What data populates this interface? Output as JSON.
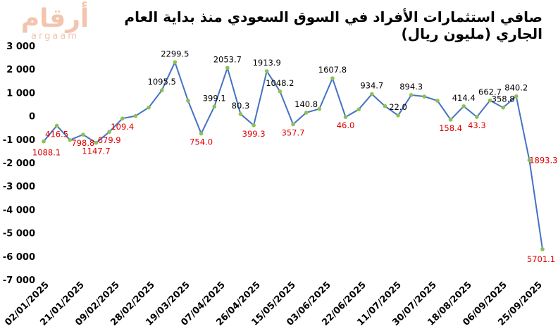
{
  "logo": {
    "text_ar": "أرقام",
    "text_en": "argaam"
  },
  "chart_data": {
    "type": "line",
    "title": "صافي استثمارات الأفراد في السوق السعودي منذ بداية العام الجاري (مليون ريال)",
    "xlabel": "",
    "ylabel": "",
    "ylim": [
      -7000,
      3000
    ],
    "y_ticks": [
      "3 000",
      "2 000",
      "1 000",
      "0",
      "-1 000",
      "-2 000",
      "-3 000",
      "-4 000",
      "-5 000",
      "-6 000",
      "-7 000"
    ],
    "x_tick_labels": [
      "02/01/2025",
      "21/01/2025",
      "09/02/2025",
      "28/02/2025",
      "19/03/2025",
      "07/04/2025",
      "26/04/2025",
      "15/05/2025",
      "03/06/2025",
      "22/06/2025",
      "11/07/2025",
      "30/07/2025",
      "18/08/2025",
      "06/09/2025",
      "25/09/2025"
    ],
    "grid": false,
    "legend": "none",
    "line_color": "#4472c4",
    "marker_color": "#8cc152",
    "positive_label_color": "#000000",
    "negative_label_color": "#e00000",
    "series": [
      {
        "values": [
          -1088.1,
          -416.5,
          -1030,
          -798.8,
          -1147.7,
          -679.9,
          -109.4,
          0,
          360,
          1095.5,
          2299.5,
          650,
          -754.0,
          399.1,
          2053.7,
          80.3,
          -399.3,
          1913.9,
          1048.2,
          -357.7,
          140.8,
          300,
          1607.8,
          -46.0,
          280,
          934.7,
          420,
          22.0,
          894.3,
          830,
          650,
          -158.4,
          414.4,
          -43.3,
          662.7,
          358.8,
          840.2,
          -1893.3,
          -5701.1
        ],
        "labels": [
          "1088.1",
          "416.5",
          "",
          "798.8",
          "1147.7",
          "679.9",
          "109.4",
          "",
          "",
          "1095.5",
          "2299.5",
          "",
          "754.0",
          "399.1",
          "2053.7",
          "80.3",
          "399.3",
          "1913.9",
          "1048.2",
          "357.7",
          "140.8",
          "",
          "1607.8",
          "46.0",
          "",
          "934.7",
          "",
          "22.0",
          "894.3",
          "",
          "",
          "158.4",
          "414.4",
          "43.3",
          "662.7",
          "358.8",
          "840.2",
          "1893.3",
          "5701.1"
        ]
      }
    ]
  }
}
